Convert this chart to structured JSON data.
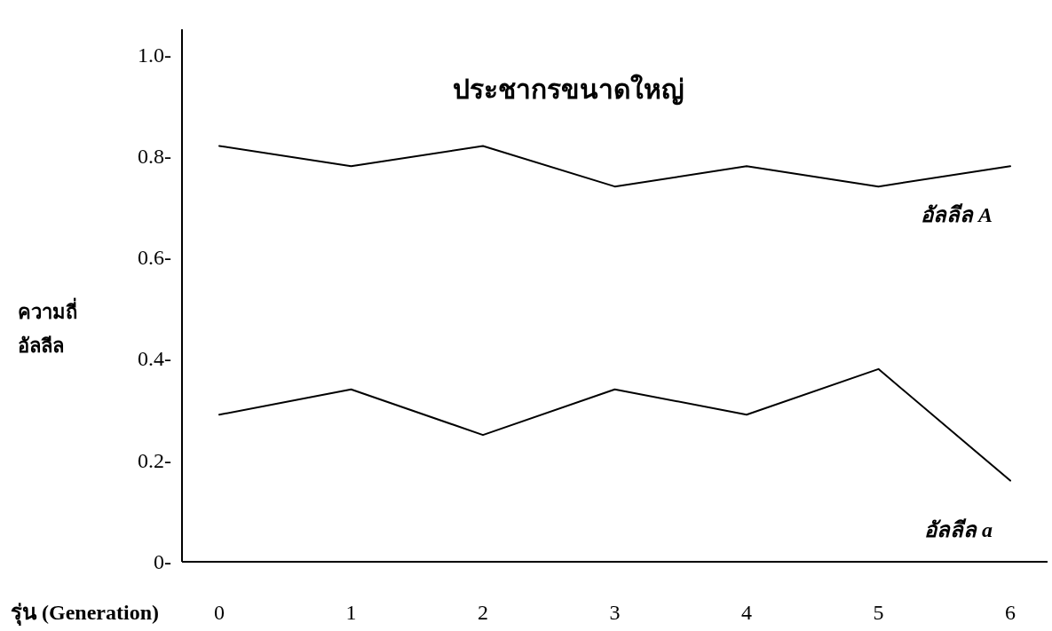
{
  "chart_data": {
    "type": "line",
    "title": "ประชากรขนาดใหญ่",
    "xlabel": "รุ่น (Generation)",
    "ylabel": "ความถี่\nอัลลีล",
    "categories": [
      "0",
      "1",
      "2",
      "3",
      "4",
      "5",
      "6"
    ],
    "series": [
      {
        "name": "อัลลีล A",
        "color": "#000000",
        "values": [
          0.82,
          0.78,
          0.82,
          0.74,
          0.78,
          0.74,
          0.78
        ]
      },
      {
        "name": "อัลลีล a",
        "color": "#000000",
        "values": [
          0.29,
          0.34,
          0.25,
          0.34,
          0.29,
          0.38,
          0.16
        ]
      }
    ],
    "ylim": [
      0,
      1.05
    ],
    "yticks": [
      {
        "value": 0,
        "label": "0-"
      },
      {
        "value": 0.2,
        "label": "0.2-"
      },
      {
        "value": 0.4,
        "label": "0.4-"
      },
      {
        "value": 0.6,
        "label": "0.6-"
      },
      {
        "value": 0.8,
        "label": "0.8-"
      },
      {
        "value": 1.0,
        "label": "1.0-"
      }
    ],
    "grid": false,
    "marker": "none",
    "line_style": "solid"
  }
}
